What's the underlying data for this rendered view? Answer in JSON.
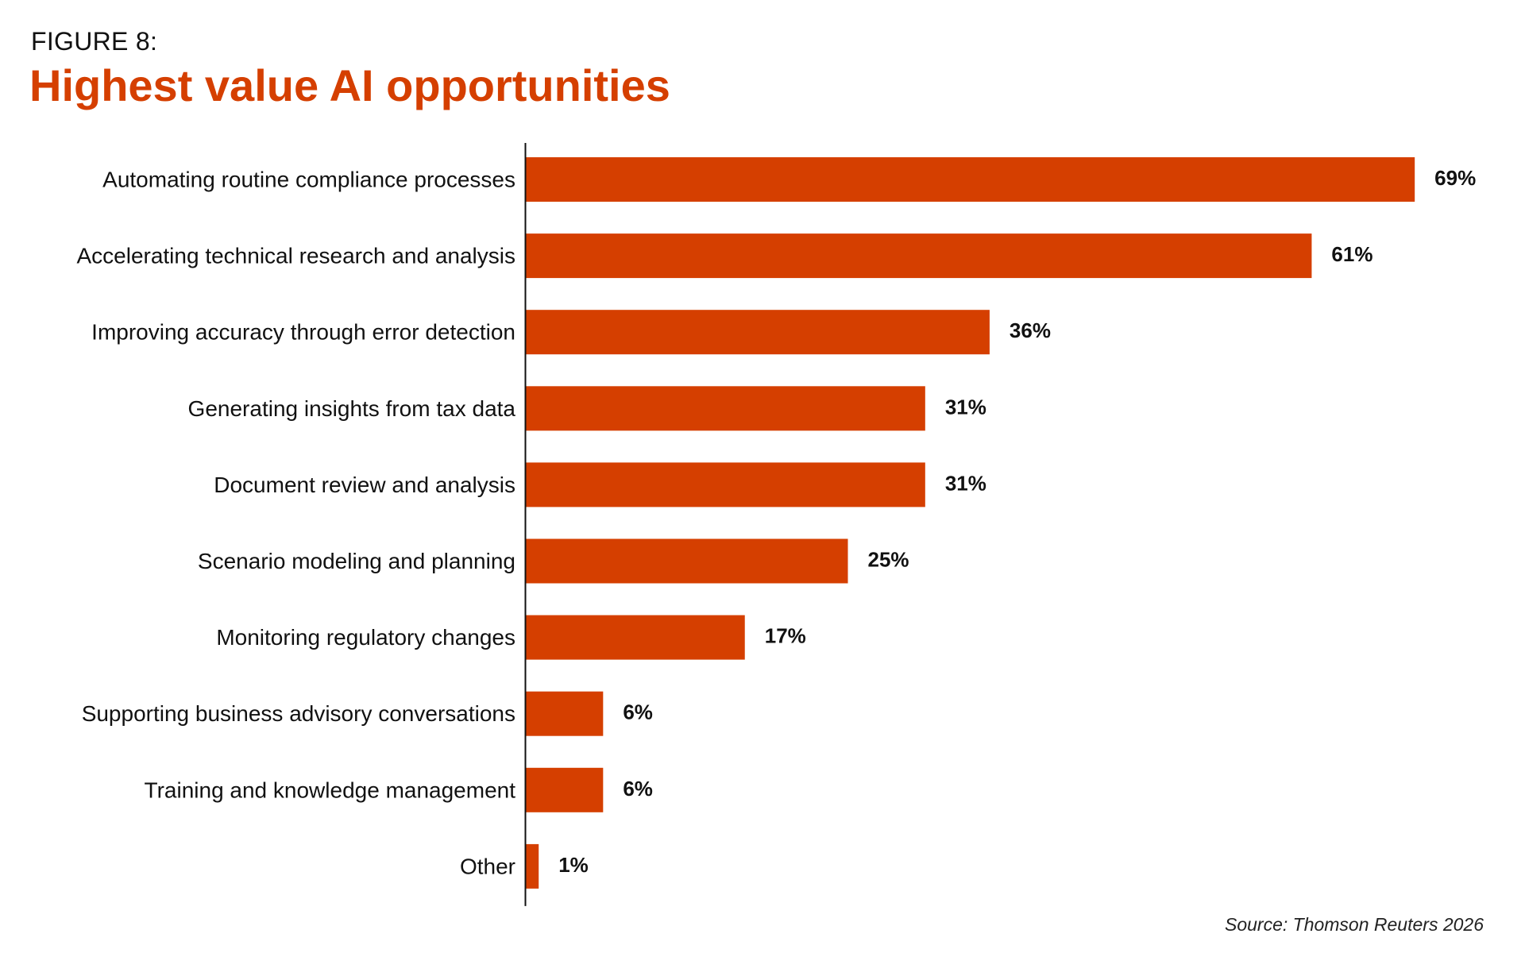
{
  "figure_label": "FIGURE 8:",
  "source": "Source: Thomson Reuters 2026",
  "colors": {
    "bar": "#d53f00",
    "title": "#d53f00",
    "axis": "#111111"
  },
  "chart_data": {
    "type": "bar",
    "orientation": "horizontal",
    "title": "Highest value AI opportunities",
    "xlabel": "",
    "ylabel": "",
    "xlim": [
      0,
      69
    ],
    "grid": false,
    "legend": "none",
    "categories": [
      "Automating routine compliance processes",
      "Accelerating technical research and analysis",
      "Improving accuracy through error detection",
      "Generating insights from tax data",
      "Document review and analysis",
      "Scenario modeling and planning",
      "Monitoring regulatory changes",
      "Supporting business advisory conversations",
      "Training and knowledge management",
      "Other"
    ],
    "values": [
      69,
      61,
      36,
      31,
      31,
      25,
      17,
      6,
      6,
      1
    ],
    "value_labels": [
      "69%",
      "61%",
      "36%",
      "31%",
      "31%",
      "25%",
      "17%",
      "6%",
      "6%",
      "1%"
    ]
  }
}
